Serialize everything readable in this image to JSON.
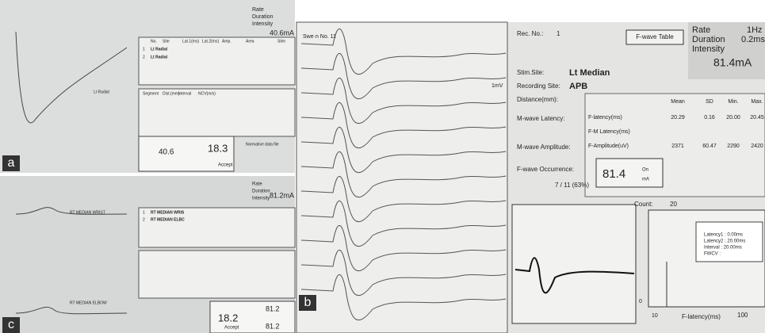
{
  "panel_labels": [
    "a",
    "b",
    "c"
  ],
  "panel_a": {
    "settings": [
      "Rate",
      "Duration",
      "Intensity"
    ],
    "intensity": "40.6mA",
    "trace_label": "Lt Radial",
    "table_header": [
      "No.",
      "Site",
      "Lat.1(ms)",
      "Lat.2(ms)",
      "Amp.",
      "Area",
      "Stim"
    ],
    "rows": [
      [
        "1",
        "Lt Radial"
      ],
      [
        "2",
        "Lt Radial"
      ]
    ],
    "segment_header": [
      "Segment",
      "Dist.(mm)",
      "Interval",
      "NCV(m/s)"
    ],
    "stim_value": "40.6",
    "temperature": "18.3",
    "accept": "Accept",
    "normative": "Normative data file"
  },
  "panel_b": {
    "sweep": "Swe·n No. 11",
    "scale": "1mV",
    "rec_label": "Rec. No.:",
    "rec_value": "1",
    "table_button": "F-wave Table",
    "settings": [
      [
        "Rate",
        "1Hz"
      ],
      [
        "Duration",
        "0.2ms"
      ],
      [
        "Intensity",
        "81.4mA"
      ]
    ],
    "fields": [
      [
        "Stim.Site:",
        "Lt Median"
      ],
      [
        "Recording Site:",
        "APB"
      ]
    ],
    "distance": "Distance(mm):",
    "params": [
      "M-wave Latency:",
      "M-wave Amplitude:",
      "F-wave Occurrence:"
    ],
    "occurrence": "7 / 11 (63%)",
    "table": {
      "header": [
        "Mean",
        "SD",
        "Min.",
        "Max."
      ],
      "rows": [
        [
          "F-latency(ms)",
          "20.29",
          "0.16",
          "20.00",
          "20.45"
        ],
        [
          "F-M Latency(ms)"
        ],
        [
          "F-Amplitude(uV)",
          "2371",
          "60.47",
          "2290",
          "2420"
        ]
      ]
    },
    "intensity_box": {
      "value": "81.4",
      "units": [
        "On",
        "mA"
      ]
    },
    "count_label": "Count:",
    "count": "20",
    "cursor": [
      "Latency1 : 0.00ms",
      "Latency2 : 20.00ms",
      "Interval : 20.00ms",
      "FWCV :"
    ],
    "plot_axis": {
      "zero": "0",
      "start": "10",
      "label": "F-latency(ms)",
      "end": "100"
    }
  },
  "panel_c": {
    "settings": [
      "Rate",
      "Duration",
      "Intensity"
    ],
    "intensity": "81.2mA",
    "trace_labels": [
      "RT MEDIAN WRIST",
      "RT MEDIAN ELBOW"
    ],
    "rows": [
      [
        "1",
        "RT MEDIAN WRIS"
      ],
      [
        "2",
        "RT MEDIAN ELBC"
      ]
    ],
    "temperature": "18.2",
    "stim_values": [
      "81.2",
      "81.2"
    ],
    "accept": "Accept"
  }
}
